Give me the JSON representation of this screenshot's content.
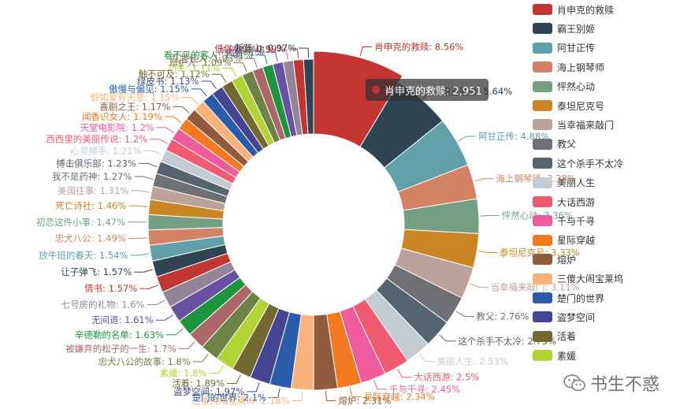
{
  "chart_data": {
    "type": "pie",
    "variant": "donut",
    "series": [
      {
        "name": "肖申克的救赎",
        "value": 8.56,
        "color": "#c23531"
      },
      {
        "name": "霸王别姬",
        "value": 5.64,
        "color": "#2f4554"
      },
      {
        "name": "阿甘正传",
        "value": 4.88,
        "color": "#61a0a8"
      },
      {
        "name": "海上钢琴师",
        "value": 3.38,
        "color": "#d48265"
      },
      {
        "name": "怦然心动",
        "value": 3.36,
        "color": "#749f83"
      },
      {
        "name": "泰坦尼克号",
        "value": 3.33,
        "color": "#ca8622"
      },
      {
        "name": "当幸福来敲门",
        "value": 3.11,
        "color": "#bda29a"
      },
      {
        "name": "教父",
        "value": 2.76,
        "color": "#6e7074"
      },
      {
        "name": "这个杀手不太冷",
        "value": 2.75,
        "color": "#546570"
      },
      {
        "name": "美丽人生",
        "value": 2.53,
        "color": "#c4ccd3"
      },
      {
        "name": "大话西游",
        "value": 2.5,
        "color": "#f05b72"
      },
      {
        "name": "千与千寻",
        "value": 2.45,
        "color": "#ef5b9c"
      },
      {
        "name": "星际穿越",
        "value": 2.34,
        "color": "#f47920"
      },
      {
        "name": "熔炉",
        "value": 2.31,
        "color": "#905a3d"
      },
      {
        "name": "三傻大闹宝莱坞",
        "value": 2.18,
        "color": "#fab27b"
      },
      {
        "name": "楚门的世界",
        "value": 2.1,
        "color": "#2a5caa"
      },
      {
        "name": "盗梦空间",
        "value": 1.97,
        "color": "#444693"
      },
      {
        "name": "活着",
        "value": 1.89,
        "color": "#726930"
      },
      {
        "name": "素媛",
        "value": 1.8,
        "color": "#b2d235"
      },
      {
        "name": "忠犬八公的故事",
        "value": 1.8,
        "color": "#6d8346"
      },
      {
        "name": "被嫌弃的松子的一生",
        "value": 1.7,
        "color": "#ac6767"
      },
      {
        "name": "辛德勒的名单",
        "value": 1.63,
        "color": "#1d953f"
      },
      {
        "name": "无间道",
        "value": 1.61,
        "color": "#6950a1"
      },
      {
        "name": "七号房的礼物",
        "value": 1.6,
        "color": "#918597"
      },
      {
        "name": "情书",
        "value": 1.57,
        "color": "#c23531"
      },
      {
        "name": "让子弹飞",
        "value": 1.57,
        "color": "#2f4554"
      },
      {
        "name": "放牛班的春天",
        "value": 1.54,
        "color": "#61a0a8"
      },
      {
        "name": "忠犬八公",
        "value": 1.49,
        "color": "#d48265"
      },
      {
        "name": "初恋这件小事",
        "value": 1.47,
        "color": "#749f83"
      },
      {
        "name": "死亡诗社",
        "value": 1.46,
        "color": "#ca8622"
      },
      {
        "name": "美国往事",
        "value": 1.31,
        "color": "#bda29a"
      },
      {
        "name": "我不是药神",
        "value": 1.27,
        "color": "#6e7074"
      },
      {
        "name": "搏击俱乐部",
        "value": 1.23,
        "color": "#546570"
      },
      {
        "name": "心灵捕手",
        "value": 1.21,
        "color": "#c4ccd3"
      },
      {
        "name": "西西里的美丽传说",
        "value": 1.2,
        "color": "#f05b72"
      },
      {
        "name": "天堂电影院",
        "value": 1.2,
        "color": "#ef5b9c"
      },
      {
        "name": "闻香识女人",
        "value": 1.19,
        "color": "#f47920"
      },
      {
        "name": "喜剧之王",
        "value": 1.17,
        "color": "#905a3d"
      },
      {
        "name": "假如爱有天意",
        "value": 1.15,
        "color": "#fab27b"
      },
      {
        "name": "傲慢与偏见",
        "value": 1.15,
        "color": "#2a5caa"
      },
      {
        "name": "绿皮书",
        "value": 1.13,
        "color": "#444693"
      },
      {
        "name": "触不可及",
        "value": 1.12,
        "color": "#726930"
      },
      {
        "name": "功夫",
        "value": 1.11,
        "color": "#b2d235"
      },
      {
        "name": "辩护人",
        "value": 1.09,
        "color": "#6d8346"
      },
      {
        "name": "乱世佳人",
        "value": 1.03,
        "color": "#ac6767"
      },
      {
        "name": "看不见的客人",
        "value": 1.01,
        "color": "#1d953f"
      },
      {
        "name": "大鱼",
        "value": 1,
        "color": "#6950a1"
      },
      {
        "name": "东邪西毒",
        "value": 1,
        "color": "#918597"
      },
      {
        "name": "低俗小说",
        "value": 0.99,
        "color": "#c23531"
      },
      {
        "name": "断背山",
        "value": 0.97,
        "color": "#2f4554"
      }
    ],
    "legend": {
      "placement": "right",
      "visible_count": 19
    },
    "tooltip": {
      "name": "肖申克的救赎",
      "value": "2,951"
    }
  },
  "watermark": "书生不惑"
}
